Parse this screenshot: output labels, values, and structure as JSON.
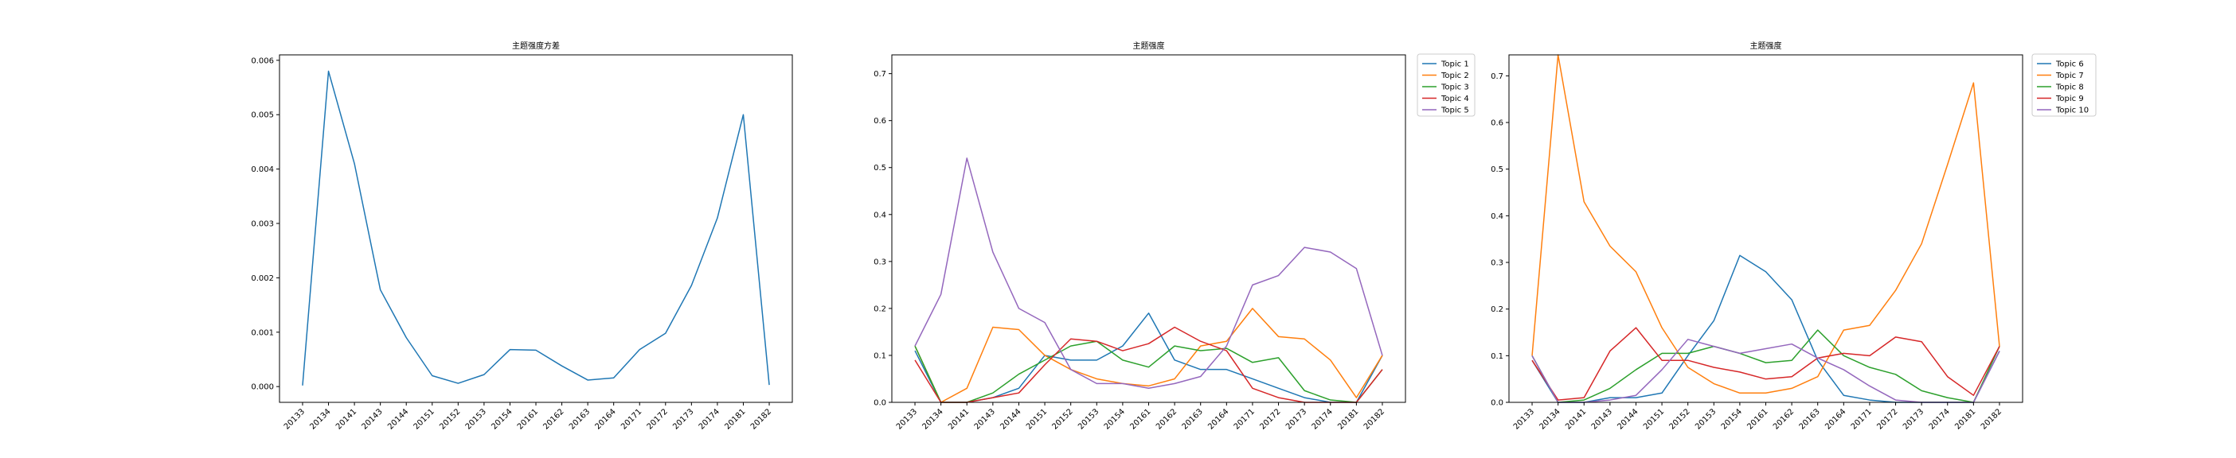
{
  "chart_data": [
    {
      "type": "line",
      "title": "主题强度方差",
      "xlabel": "",
      "ylabel": "",
      "categories": [
        "20133",
        "20134",
        "20141",
        "20143",
        "20144",
        "20151",
        "20152",
        "20153",
        "20154",
        "20161",
        "20162",
        "20163",
        "20164",
        "20171",
        "20172",
        "20173",
        "20174",
        "20181",
        "20182"
      ],
      "ylim": [
        -0.00029,
        0.0061
      ],
      "yticks": [
        "0.000",
        "0.001",
        "0.002",
        "0.003",
        "0.004",
        "0.005",
        "0.006"
      ],
      "yticks_values": [
        0,
        0.001,
        0.002,
        0.003,
        0.004,
        0.005,
        0.006
      ],
      "legend": "none",
      "grid": false,
      "series": [
        {
          "color": "#1f77b4",
          "values": [
            2e-05,
            0.0058,
            0.0041,
            0.00178,
            0.0009,
            0.0002,
            6e-05,
            0.00022,
            0.00068,
            0.00067,
            0.00038,
            0.00012,
            0.00016,
            0.00068,
            0.00098,
            0.00186,
            0.0031,
            0.005,
            3e-05
          ]
        }
      ]
    },
    {
      "type": "line",
      "title": "主题强度",
      "xlabel": "",
      "ylabel": "",
      "categories": [
        "20133",
        "20134",
        "20141",
        "20143",
        "20144",
        "20151",
        "20152",
        "20153",
        "20154",
        "20161",
        "20162",
        "20163",
        "20164",
        "20171",
        "20172",
        "20173",
        "20174",
        "20181",
        "20182"
      ],
      "ylim": [
        0,
        0.74
      ],
      "yticks": [
        "0.0",
        "0.1",
        "0.2",
        "0.3",
        "0.4",
        "0.5",
        "0.6",
        "0.7"
      ],
      "yticks_values": [
        0,
        0.1,
        0.2,
        0.3,
        0.4,
        0.5,
        0.6,
        0.7
      ],
      "legend": "outside-top-right",
      "grid": false,
      "series": [
        {
          "name": "Topic 1",
          "color": "#1f77b4",
          "values": [
            0.11,
            0.0,
            0.0,
            0.01,
            0.03,
            0.1,
            0.09,
            0.09,
            0.12,
            0.19,
            0.09,
            0.07,
            0.07,
            0.05,
            0.03,
            0.01,
            0.0,
            0.0,
            0.1
          ]
        },
        {
          "name": "Topic 2",
          "color": "#ff7f0e",
          "values": [
            0.12,
            0.0,
            0.03,
            0.16,
            0.155,
            0.1,
            0.07,
            0.05,
            0.04,
            0.035,
            0.05,
            0.12,
            0.13,
            0.2,
            0.14,
            0.135,
            0.09,
            0.01,
            0.1
          ]
        },
        {
          "name": "Topic 3",
          "color": "#2ca02c",
          "values": [
            0.12,
            0.0,
            0.0,
            0.02,
            0.06,
            0.09,
            0.12,
            0.13,
            0.09,
            0.075,
            0.12,
            0.11,
            0.115,
            0.085,
            0.095,
            0.025,
            0.005,
            0.0,
            0.07
          ]
        },
        {
          "name": "Topic 4",
          "color": "#d62728",
          "values": [
            0.09,
            0.0,
            0.0,
            0.01,
            0.02,
            0.08,
            0.135,
            0.13,
            0.11,
            0.125,
            0.16,
            0.13,
            0.11,
            0.03,
            0.01,
            0.0,
            0.0,
            0.0,
            0.07
          ]
        },
        {
          "name": "Topic 5",
          "color": "#9467bd",
          "values": [
            0.12,
            0.23,
            0.52,
            0.32,
            0.2,
            0.17,
            0.07,
            0.04,
            0.04,
            0.03,
            0.04,
            0.055,
            0.12,
            0.25,
            0.27,
            0.33,
            0.32,
            0.285,
            0.1
          ]
        }
      ]
    },
    {
      "type": "line",
      "title": "主题强度",
      "xlabel": "",
      "ylabel": "",
      "categories": [
        "20133",
        "20134",
        "20141",
        "20143",
        "20144",
        "20151",
        "20152",
        "20153",
        "20154",
        "20161",
        "20162",
        "20163",
        "20164",
        "20171",
        "20172",
        "20173",
        "20174",
        "20181",
        "20182"
      ],
      "ylim": [
        0,
        0.745
      ],
      "yticks": [
        "0.0",
        "0.1",
        "0.2",
        "0.3",
        "0.4",
        "0.5",
        "0.6",
        "0.7"
      ],
      "yticks_values": [
        0,
        0.1,
        0.2,
        0.3,
        0.4,
        0.5,
        0.6,
        0.7
      ],
      "legend": "outside-top-right",
      "grid": false,
      "series": [
        {
          "name": "Topic 6",
          "color": "#1f77b4",
          "values": [
            0.09,
            0.0,
            0.0,
            0.01,
            0.01,
            0.02,
            0.1,
            0.175,
            0.315,
            0.28,
            0.22,
            0.09,
            0.015,
            0.005,
            0.0,
            0.0,
            0.0,
            0.0,
            0.11
          ]
        },
        {
          "name": "Topic 7",
          "color": "#ff7f0e",
          "values": [
            0.1,
            0.745,
            0.43,
            0.335,
            0.28,
            0.16,
            0.075,
            0.04,
            0.02,
            0.02,
            0.03,
            0.055,
            0.155,
            0.165,
            0.24,
            0.34,
            0.51,
            0.685,
            0.12
          ]
        },
        {
          "name": "Topic 8",
          "color": "#2ca02c",
          "values": [
            0.1,
            0.0,
            0.005,
            0.03,
            0.07,
            0.105,
            0.105,
            0.12,
            0.105,
            0.085,
            0.09,
            0.155,
            0.1,
            0.075,
            0.06,
            0.025,
            0.01,
            0.0,
            0.12
          ]
        },
        {
          "name": "Topic 9",
          "color": "#d62728",
          "values": [
            0.09,
            0.005,
            0.01,
            0.11,
            0.16,
            0.09,
            0.09,
            0.075,
            0.065,
            0.05,
            0.055,
            0.095,
            0.105,
            0.1,
            0.14,
            0.13,
            0.055,
            0.015,
            0.12
          ]
        },
        {
          "name": "Topic 10",
          "color": "#9467bd",
          "values": [
            0.1,
            0.0,
            0.0,
            0.005,
            0.015,
            0.07,
            0.135,
            0.12,
            0.105,
            0.115,
            0.125,
            0.095,
            0.07,
            0.035,
            0.005,
            0.0,
            0.0,
            0.0,
            0.11
          ]
        }
      ]
    }
  ]
}
